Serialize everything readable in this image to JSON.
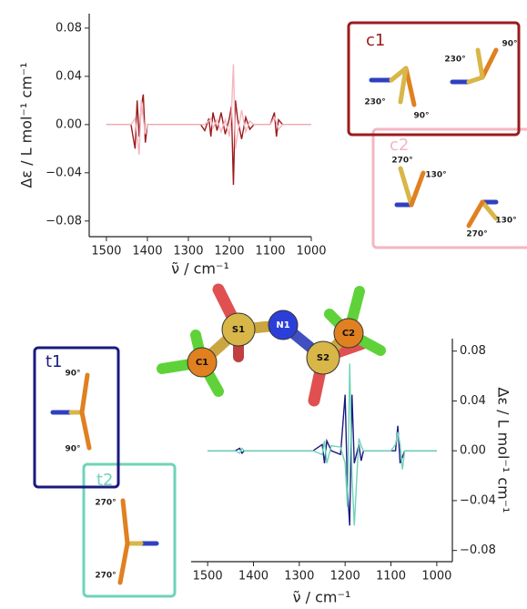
{
  "chart_data": [
    {
      "type": "line",
      "xlabel": "ν̃ / cm⁻¹",
      "ylabel": "Δε / L mol⁻¹ cm⁻¹",
      "x": [
        1500,
        1440,
        1430,
        1425,
        1420,
        1415,
        1410,
        1405,
        1400,
        1390,
        1270,
        1260,
        1250,
        1245,
        1240,
        1230,
        1220,
        1210,
        1200,
        1195,
        1190,
        1185,
        1180,
        1170,
        1160,
        1150,
        1140,
        1100,
        1090,
        1085,
        1080,
        1070,
        1000
      ],
      "series": [
        {
          "name": "c1",
          "color": "#9b1b1b",
          "angles": [
            "230°",
            "90°",
            "230°",
            "90°"
          ],
          "values": [
            0,
            0,
            -0.02,
            0.02,
            -0.01,
            0.015,
            0.025,
            -0.015,
            0,
            0,
            0,
            -0.005,
            0.005,
            -0.01,
            0.01,
            -0.005,
            0.01,
            -0.008,
            0.005,
            0.015,
            -0.05,
            0.02,
            0.005,
            -0.012,
            0.006,
            -0.004,
            0,
            0,
            0.01,
            -0.01,
            0.004,
            0,
            0
          ]
        },
        {
          "name": "c2",
          "color": "#f4b6c2",
          "angles": [
            "270°",
            "130°",
            "130°",
            "270°"
          ],
          "values": [
            0,
            0,
            0.005,
            -0.01,
            -0.025,
            0.02,
            0.005,
            -0.008,
            0,
            0,
            0,
            0,
            0.003,
            0.005,
            -0.003,
            0.004,
            -0.006,
            0.004,
            -0.01,
            0.008,
            0.05,
            -0.02,
            -0.008,
            0.012,
            -0.006,
            0.003,
            0,
            0,
            0.006,
            0.002,
            -0.004,
            0,
            0
          ]
        }
      ],
      "xlim": [
        1542,
        1000
      ],
      "ylim": [
        -0.093,
        0.092
      ],
      "xticks": [
        1500,
        1400,
        1300,
        1200,
        1100,
        1000
      ],
      "yticks": [
        0.08,
        0.04,
        {
          "value": 0,
          "label": "0.00"
        },
        {
          "value": -0.04,
          "label": "−0.04"
        },
        {
          "value": -0.08,
          "label": "−0.08"
        }
      ]
    },
    {
      "type": "line",
      "xlabel": "ν̃ / cm⁻¹",
      "ylabel": "Δε / L mol⁻¹ cm⁻¹",
      "x": [
        1500,
        1440,
        1430,
        1425,
        1420,
        1270,
        1250,
        1245,
        1240,
        1230,
        1210,
        1200,
        1195,
        1190,
        1185,
        1180,
        1170,
        1165,
        1160,
        1100,
        1090,
        1085,
        1080,
        1075,
        1070,
        1000
      ],
      "series": [
        {
          "name": "t1",
          "color": "#1a1a80",
          "angles": [
            "90°",
            "90°"
          ],
          "values": [
            0,
            0,
            0.002,
            -0.002,
            0,
            0,
            0.005,
            -0.01,
            0.008,
            0,
            -0.003,
            0.045,
            -0.03,
            -0.06,
            0.045,
            -0.01,
            0.005,
            -0.008,
            0,
            0,
            0,
            0.02,
            -0.01,
            -0.005,
            0,
            0
          ]
        },
        {
          "name": "t2",
          "color": "#6fd3b8",
          "angles": [
            "270°",
            "270°"
          ],
          "values": [
            0,
            0,
            -0.002,
            0.002,
            0,
            0,
            -0.003,
            0.008,
            -0.01,
            0.004,
            0.003,
            -0.01,
            -0.045,
            0.07,
            -0.02,
            -0.06,
            0.01,
            0.004,
            0,
            0,
            0.005,
            0.015,
            0.005,
            -0.015,
            0,
            0
          ]
        }
      ],
      "xlim": [
        1536,
        966
      ],
      "ylim": [
        -0.089,
        0.09
      ],
      "xticks": [
        1500,
        1400,
        1300,
        1200,
        1100,
        1000
      ],
      "yticks": [
        0.08,
        0.04,
        {
          "value": 0,
          "label": "0.00"
        },
        {
          "value": -0.04,
          "label": "−0.04"
        },
        {
          "value": -0.08,
          "label": "−0.08"
        }
      ]
    }
  ],
  "molecule": {
    "atoms": [
      "S1",
      "N1",
      "S2",
      "C1",
      "C2"
    ]
  }
}
